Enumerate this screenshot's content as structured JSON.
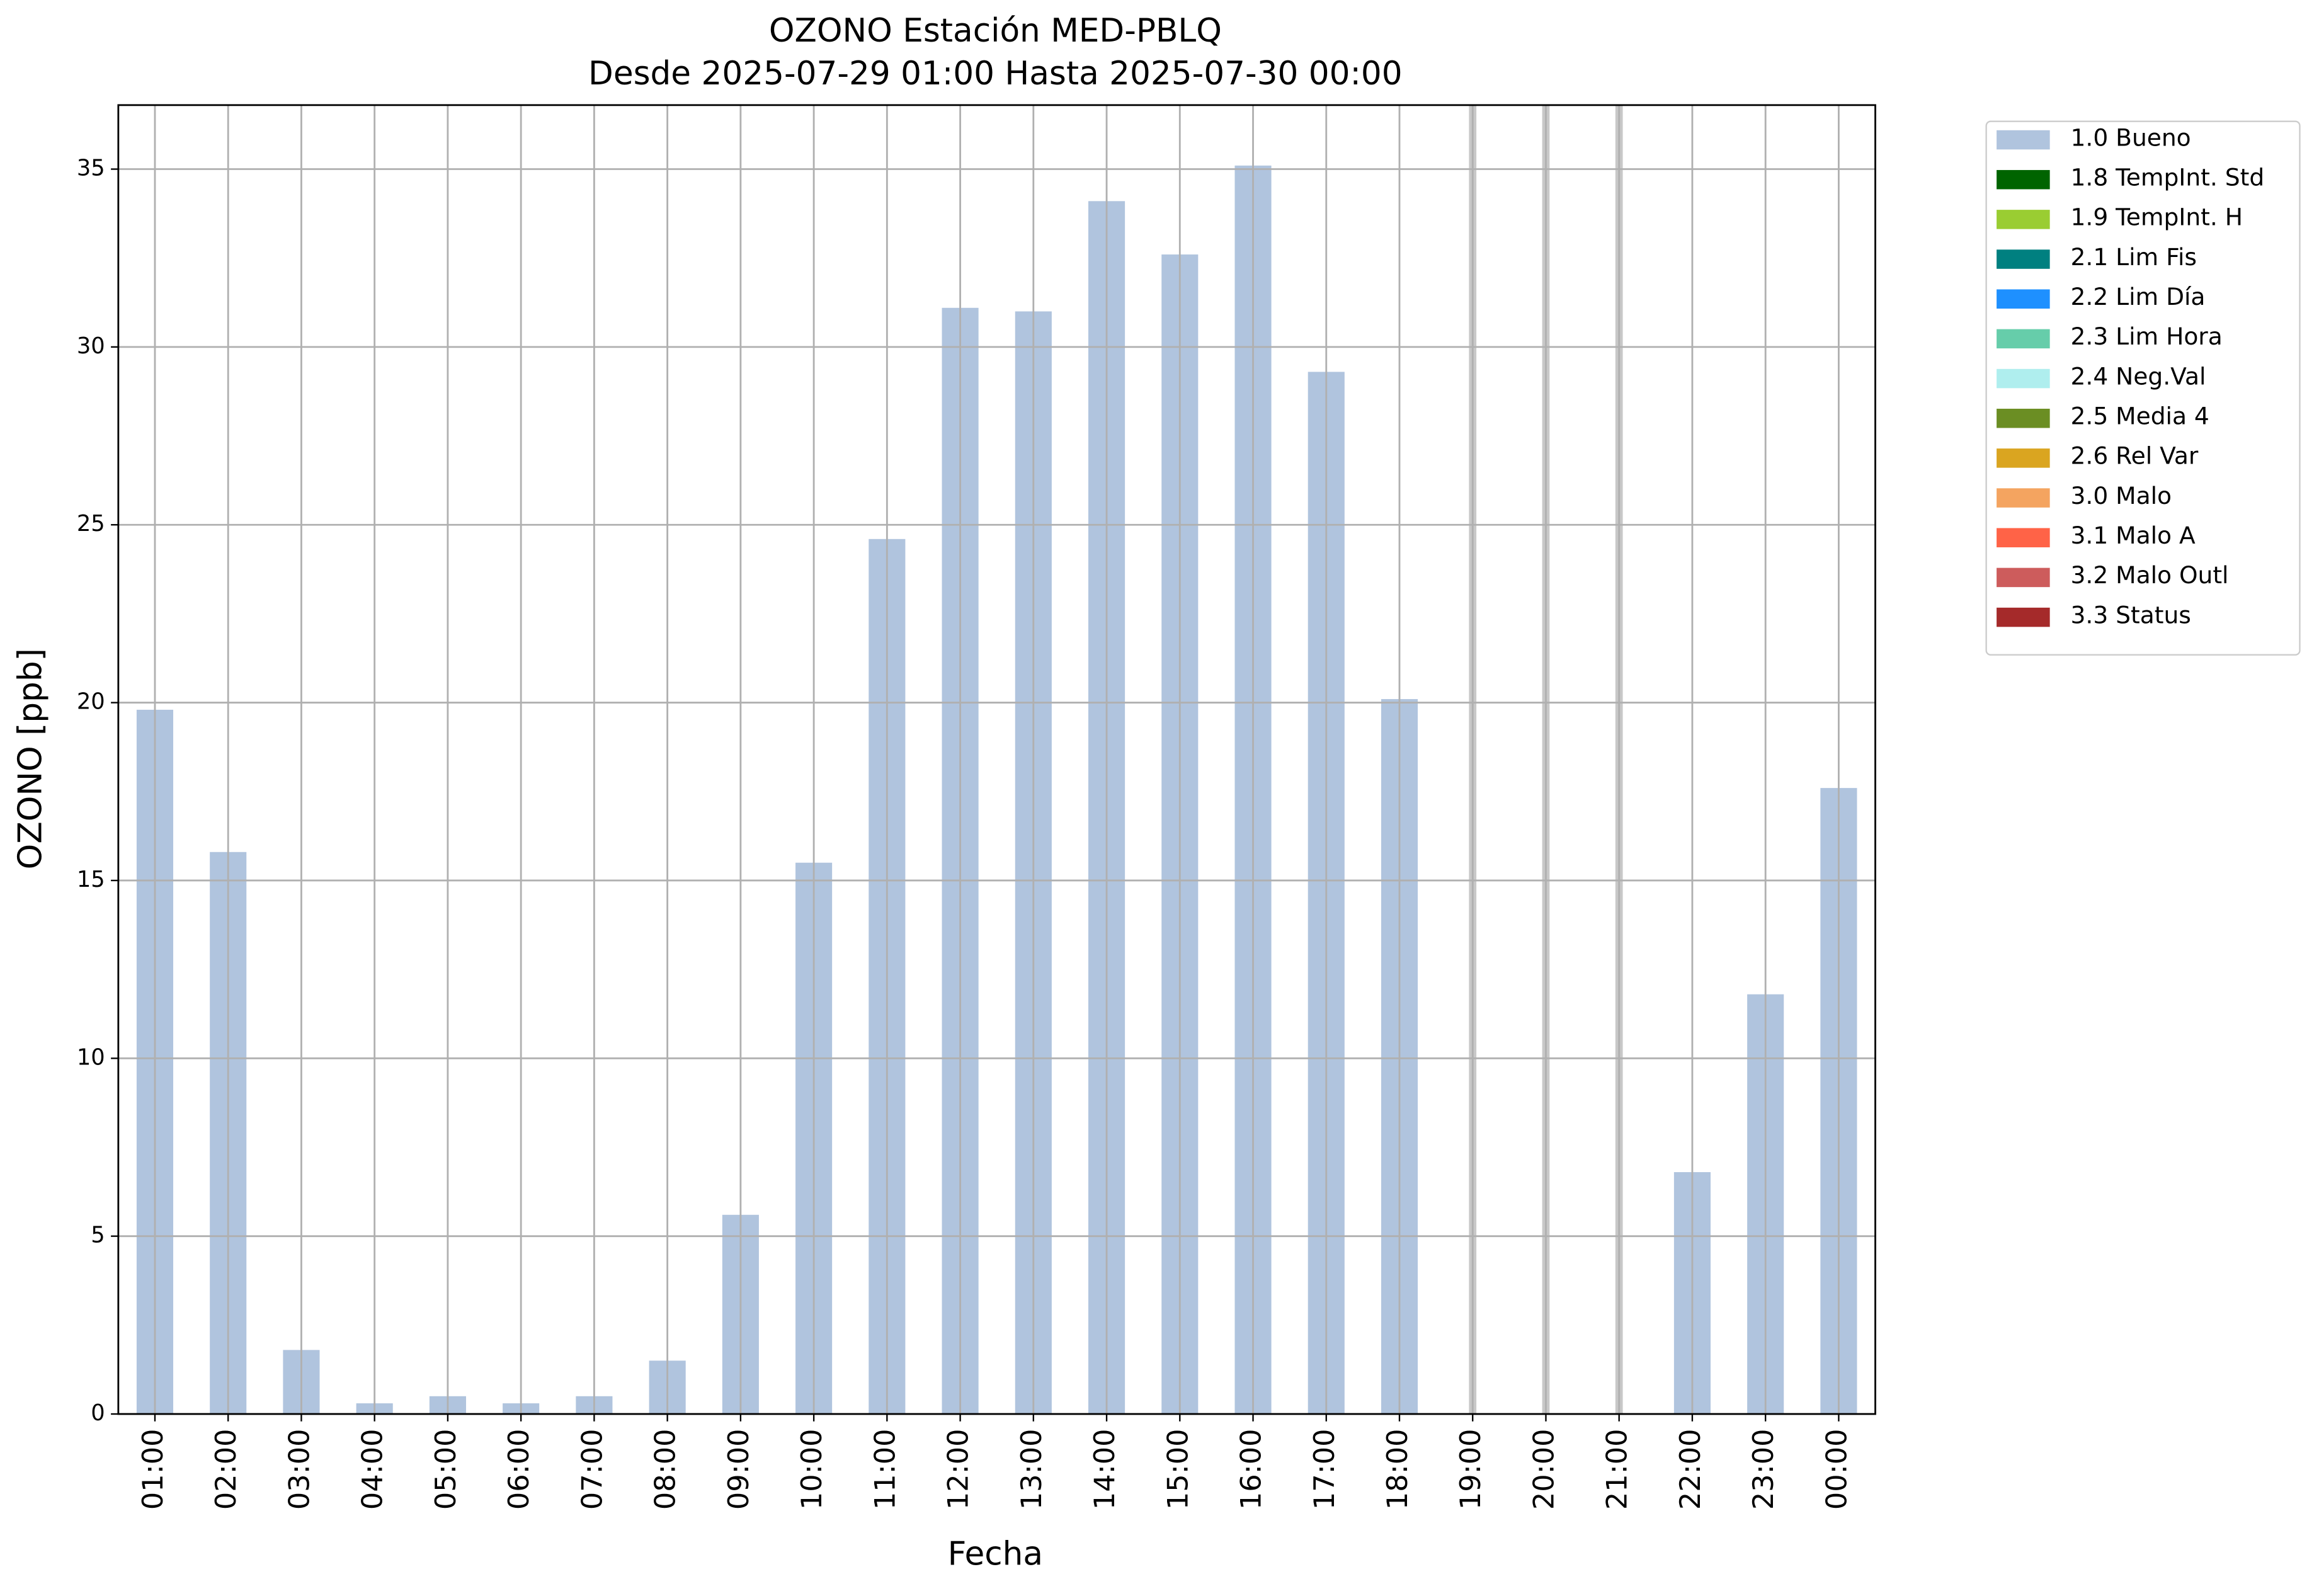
{
  "chart_data": {
    "type": "bar",
    "title": "OZONO Estación MED-PBLQ",
    "subtitle": "Desde 2025-07-29 01:00 Hasta 2025-07-30 00:00",
    "x_label": "Fecha",
    "y_label": "OZONO [ppb]",
    "categories": [
      "01:00",
      "02:00",
      "03:00",
      "04:00",
      "05:00",
      "06:00",
      "07:00",
      "08:00",
      "09:00",
      "10:00",
      "11:00",
      "12:00",
      "13:00",
      "14:00",
      "15:00",
      "16:00",
      "17:00",
      "18:00",
      "19:00",
      "20:00",
      "21:00",
      "22:00",
      "23:00",
      "00:00"
    ],
    "series": [
      {
        "name": "1.0 Bueno",
        "color": "#b0c4de",
        "values": [
          19.8,
          15.8,
          1.8,
          0.3,
          0.5,
          0.3,
          0.5,
          1.5,
          5.6,
          15.5,
          24.6,
          31.1,
          31.0,
          34.1,
          32.6,
          35.1,
          29.3,
          20.1,
          null,
          null,
          null,
          6.8,
          11.8,
          17.6
        ]
      }
    ],
    "legend_entries": [
      {
        "name": "1.8 TempInt. Std",
        "color": "#006400"
      },
      {
        "name": "1.9 TempInt. H",
        "color": "#9acd32"
      },
      {
        "name": "2.1 Lim Fis",
        "color": "#008080"
      },
      {
        "name": "2.2 Lim Día",
        "color": "#1e90ff"
      },
      {
        "name": "2.3 Lim Hora",
        "color": "#66cdaa"
      },
      {
        "name": "2.4 Neg.Val",
        "color": "#afeeee"
      },
      {
        "name": "2.5 Media 4",
        "color": "#6b8e23"
      },
      {
        "name": "2.6 Rel Var",
        "color": "#daa520"
      },
      {
        "name": "3.0 Malo",
        "color": "#f4a460"
      },
      {
        "name": "3.1 Malo A",
        "color": "#ff6347"
      },
      {
        "name": "3.2 Malo Outl",
        "color": "#cd5c5c"
      },
      {
        "name": "3.3 Status",
        "color": "#a52a2a"
      }
    ],
    "missing_color": "#c8c8c8",
    "legend_position": "outside-upper-right",
    "ylim": [
      0,
      36.8
    ],
    "yticks": [
      0,
      5,
      10,
      15,
      20,
      25,
      30,
      35
    ],
    "grid": true
  }
}
